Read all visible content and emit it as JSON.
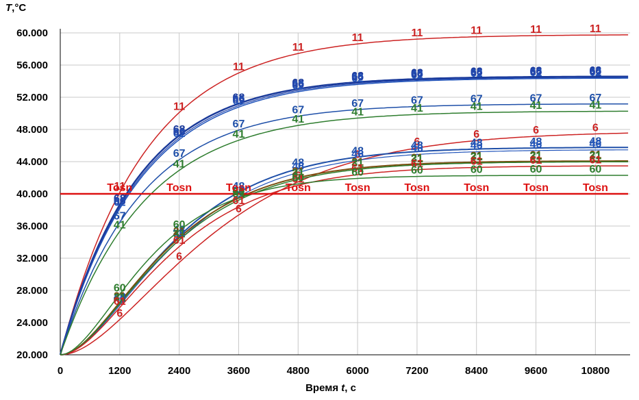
{
  "chart_data": {
    "type": "line",
    "ylabel_var": "T",
    "ylabel_unit": ",°C",
    "xlabel_prefix": "Время ",
    "xlabel_var": "t",
    "xlabel_unit": ", с",
    "xlim": [
      0,
      11500
    ],
    "ylim": [
      20,
      60
    ],
    "grid": true,
    "x_ticks": [
      0,
      1200,
      2400,
      3600,
      4800,
      6000,
      7200,
      8400,
      9600,
      10800
    ],
    "x_tick_labels": [
      "0",
      "1200",
      "2400",
      "3600",
      "4800",
      "6000",
      "7200",
      "8400",
      "9600",
      "10800"
    ],
    "y_ticks": [
      20,
      24,
      28,
      32,
      36,
      40,
      44,
      48,
      52,
      56,
      60
    ],
    "y_tick_labels": [
      "20.000",
      "24.000",
      "28.000",
      "32.000",
      "36.000",
      "40.000",
      "44.000",
      "48.000",
      "52.000",
      "56.000",
      "60.000"
    ],
    "label_x": [
      1200,
      2400,
      3600,
      4800,
      6000,
      7200,
      8400,
      9600,
      10800
    ],
    "series": [
      {
        "name": "11",
        "color": "#cc2222",
        "initial": 20,
        "final": 59.8,
        "tau": 1700,
        "n": 1,
        "width": 1.5
      },
      {
        "name": "68",
        "color": "#1a3a9a",
        "initial": 20,
        "final": 54.6,
        "tau": 1550,
        "n": 1,
        "width": 2.5
      },
      {
        "name": "62",
        "color": "#2255bb",
        "initial": 20,
        "final": 54.4,
        "tau": 1600,
        "n": 1,
        "width": 1.5
      },
      {
        "name": "66",
        "color": "#2244aa",
        "initial": 20,
        "final": 54.5,
        "tau": 1580,
        "n": 1,
        "width": 1.2
      },
      {
        "name": "67",
        "color": "#1e4fa8",
        "initial": 20,
        "final": 51.2,
        "tau": 1600,
        "n": 1,
        "width": 1.5
      },
      {
        "name": "41",
        "color": "#2e7d2e",
        "initial": 20,
        "final": 50.3,
        "tau": 1700,
        "n": 1,
        "width": 1.5
      },
      {
        "name": "6",
        "color": "#cc2222",
        "initial": 20,
        "final": 47.8,
        "tau": 1700,
        "n": 2,
        "width": 1.5
      },
      {
        "name": "48",
        "color": "#1e4fa8",
        "initial": 20,
        "final": 45.8,
        "tau": 1250,
        "n": 2,
        "width": 2
      },
      {
        "name": "46",
        "color": "#2255bb",
        "initial": 20,
        "final": 45.5,
        "tau": 1280,
        "n": 2,
        "width": 1.2
      },
      {
        "name": "21",
        "color": "#7a4f10",
        "initial": 20,
        "final": 44.1,
        "tau": 1180,
        "n": 2,
        "width": 2
      },
      {
        "name": "31",
        "color": "#2e7d2e",
        "initial": 20,
        "final": 44.0,
        "tau": 1200,
        "n": 2,
        "width": 1.5
      },
      {
        "name": "61",
        "color": "#cc2222",
        "initial": 20,
        "final": 43.5,
        "tau": 1250,
        "n": 2,
        "width": 1.5
      },
      {
        "name": "60",
        "color": "#2e7d2e",
        "initial": 20,
        "final": 42.3,
        "tau": 1000,
        "n": 2,
        "width": 1.5
      },
      {
        "name": "Tosn",
        "color": "#dd1111",
        "constant": 40,
        "width": 2.5
      }
    ]
  }
}
